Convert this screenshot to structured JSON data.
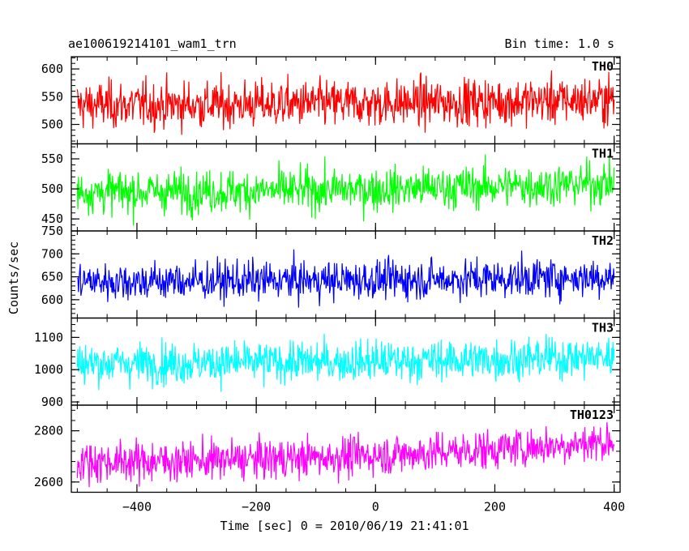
{
  "header": {
    "title": "ae100619214101_wam1_trn",
    "bin_time": "Bin time: 1.0 s"
  },
  "axes": {
    "xlabel": "Time [sec] 0 = 2010/06/19 21:41:01",
    "ylabel": "Counts/sec"
  },
  "colors": {
    "TH0": "#ff0000",
    "TH1": "#00ff00",
    "TH2": "#0000ff",
    "TH3": "#00ffff",
    "TH0123": "#ff00ff"
  },
  "chart_data": {
    "type": "line",
    "x_range": [
      -510,
      410
    ],
    "x_ticks": [
      -400,
      -200,
      0,
      200,
      400
    ],
    "x_step": 1.0,
    "x_start": -500,
    "x_end": 400,
    "panels": [
      {
        "name": "TH0",
        "ylim": [
          465,
          622
        ],
        "yticks": [
          500,
          550,
          600
        ],
        "mean": 535,
        "noise": 30,
        "trend_end": 10
      },
      {
        "name": "TH1",
        "ylim": [
          430,
          575
        ],
        "yticks": [
          450,
          500,
          550
        ],
        "mean": 495,
        "noise": 25,
        "trend_end": 15
      },
      {
        "name": "TH2",
        "ylim": [
          560,
          750
        ],
        "yticks": [
          600,
          650,
          700,
          750
        ],
        "mean": 640,
        "noise": 30,
        "trend_end": 10
      },
      {
        "name": "TH3",
        "ylim": [
          890,
          1160
        ],
        "yticks": [
          900,
          1000,
          1100
        ],
        "mean": 1020,
        "noise": 45,
        "trend_end": 20
      },
      {
        "name": "TH0123",
        "ylim": [
          2560,
          2900
        ],
        "yticks": [
          2600,
          2800
        ],
        "mean": 2680,
        "noise": 55,
        "trend_end": 80
      }
    ]
  }
}
